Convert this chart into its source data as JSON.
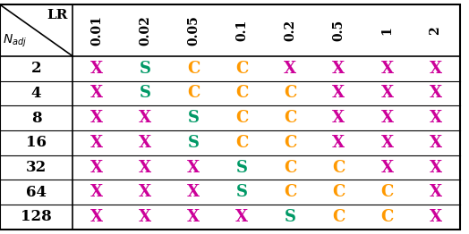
{
  "col_labels": [
    "0.01",
    "0.02",
    "0.05",
    "0.1",
    "0.2",
    "0.5",
    "1",
    "2"
  ],
  "row_labels": [
    "2",
    "4",
    "8",
    "16",
    "32",
    "64",
    "128"
  ],
  "cells": [
    [
      "X",
      "S",
      "C",
      "C",
      "X",
      "X",
      "X",
      "X"
    ],
    [
      "X",
      "S",
      "C",
      "C",
      "C",
      "X",
      "X",
      "X"
    ],
    [
      "X",
      "X",
      "S",
      "C",
      "C",
      "X",
      "X",
      "X"
    ],
    [
      "X",
      "X",
      "S",
      "C",
      "C",
      "X",
      "X",
      "X"
    ],
    [
      "X",
      "X",
      "X",
      "S",
      "C",
      "C",
      "X",
      "X"
    ],
    [
      "X",
      "X",
      "X",
      "S",
      "C",
      "C",
      "C",
      "X"
    ],
    [
      "X",
      "X",
      "X",
      "X",
      "S",
      "C",
      "C",
      "X"
    ]
  ],
  "color_map": {
    "X": "#CC0099",
    "S": "#009966",
    "C": "#FF9900"
  },
  "header_top_left_top": "LR",
  "header_top_left_bottom": "$N_{adj}$",
  "figsize": [
    5.24,
    2.62
  ],
  "dpi": 100
}
